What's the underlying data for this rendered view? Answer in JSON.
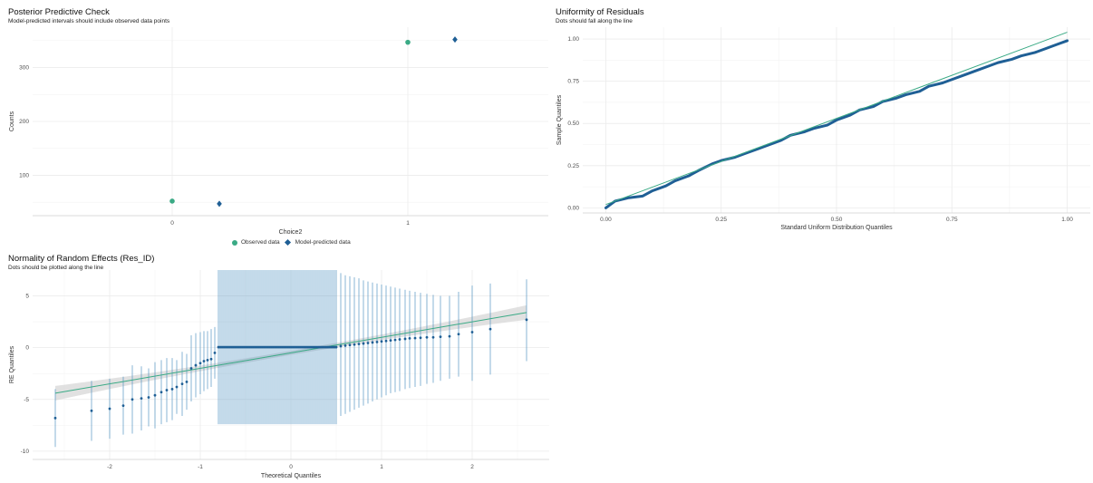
{
  "colors": {
    "observed": "#3aaa85",
    "predicted": "#1f5f95",
    "line": "#3aaa85",
    "points": "#1f5f95",
    "band": "#d9d9d9",
    "grid": "#ebebeb",
    "errorbar": "#4f90c0"
  },
  "chart_data": [
    {
      "type": "scatter",
      "title": "Posterior Predictive Check",
      "subtitle": "Model-predicted intervals should include observed data points",
      "xlabel": "Choice2",
      "ylabel": "Counts",
      "x_ticks": [
        "0",
        "1"
      ],
      "y_ticks": [
        100,
        200,
        300
      ],
      "ylim": [
        25,
        375
      ],
      "legend": {
        "position": "bottom",
        "observed_label": "Observed data",
        "predicted_label": "Model-predicted data"
      },
      "observed": [
        {
          "x": "0",
          "y": 52
        },
        {
          "x": "1",
          "y": 347
        }
      ],
      "predicted": [
        {
          "x": "0",
          "y": 47,
          "low": 43,
          "high": 51
        },
        {
          "x": "1",
          "y": 352,
          "low": 348,
          "high": 356
        }
      ]
    },
    {
      "type": "scatter",
      "title": "Uniformity of Residuals",
      "subtitle": "Dots should fall along the line",
      "xlabel": "Standard Uniform Distribution Quantiles",
      "ylabel": "Sample Quantiles",
      "x_ticks": [
        "0.00",
        "0.25",
        "0.50",
        "0.75",
        "1.00"
      ],
      "y_ticks": [
        "0.00",
        "0.25",
        "0.50",
        "0.75",
        "1.00"
      ],
      "xlim": [
        -0.05,
        1.05
      ],
      "ylim": [
        -0.03,
        1.07
      ],
      "reference_line": {
        "x": [
          0.0,
          1.0
        ],
        "y": [
          0.02,
          1.04
        ]
      },
      "points": {
        "x": [
          0.0,
          0.02,
          0.05,
          0.08,
          0.1,
          0.13,
          0.15,
          0.18,
          0.2,
          0.23,
          0.25,
          0.28,
          0.3,
          0.33,
          0.35,
          0.38,
          0.4,
          0.43,
          0.45,
          0.48,
          0.5,
          0.53,
          0.55,
          0.58,
          0.6,
          0.63,
          0.65,
          0.68,
          0.7,
          0.73,
          0.75,
          0.78,
          0.8,
          0.83,
          0.85,
          0.88,
          0.9,
          0.93,
          0.95,
          0.98,
          1.0
        ],
        "y": [
          0.0,
          0.04,
          0.06,
          0.07,
          0.1,
          0.13,
          0.16,
          0.19,
          0.22,
          0.26,
          0.28,
          0.3,
          0.32,
          0.35,
          0.37,
          0.4,
          0.43,
          0.45,
          0.47,
          0.49,
          0.52,
          0.55,
          0.58,
          0.6,
          0.63,
          0.65,
          0.67,
          0.69,
          0.72,
          0.74,
          0.76,
          0.79,
          0.81,
          0.84,
          0.86,
          0.88,
          0.9,
          0.92,
          0.94,
          0.97,
          0.99
        ]
      }
    },
    {
      "type": "scatter",
      "title": "Normality of Random Effects (Res_ID)",
      "subtitle": "Dots should be plotted along the line",
      "xlabel": "Theoretical Quantiles",
      "ylabel": "RE Quantiles",
      "x_ticks": [
        -2,
        -1,
        0,
        1,
        2
      ],
      "y_ticks": [
        -10,
        -5,
        0,
        5
      ],
      "xlim": [
        -2.85,
        2.85
      ],
      "ylim": [
        -10.8,
        7.5
      ],
      "reference_line": {
        "x": [
          -2.6,
          2.6
        ],
        "y": [
          -4.4,
          3.4
        ],
        "band_halfwidth_ends": 0.7,
        "band_halfwidth_mid": 0.2
      },
      "points": [
        {
          "x": -2.6,
          "y": -6.8,
          "low": -9.6,
          "high": -4.0
        },
        {
          "x": -2.2,
          "y": -6.1,
          "low": -9.0,
          "high": -3.2
        },
        {
          "x": -2.0,
          "y": -5.9,
          "low": -8.8,
          "high": -3.0
        },
        {
          "x": -1.85,
          "y": -5.6,
          "low": -8.4,
          "high": -2.8
        },
        {
          "x": -1.75,
          "y": -5.0,
          "low": -8.3,
          "high": -1.7
        },
        {
          "x": -1.65,
          "y": -4.9,
          "low": -8.0,
          "high": -1.8
        },
        {
          "x": -1.57,
          "y": -4.8,
          "low": -7.6,
          "high": -2.0
        },
        {
          "x": -1.5,
          "y": -4.6,
          "low": -7.8,
          "high": -1.4
        },
        {
          "x": -1.43,
          "y": -4.3,
          "low": -7.4,
          "high": -1.2
        },
        {
          "x": -1.37,
          "y": -4.1,
          "low": -7.2,
          "high": -1.0
        },
        {
          "x": -1.31,
          "y": -4.0,
          "low": -7.0,
          "high": -1.0
        },
        {
          "x": -1.26,
          "y": -3.8,
          "low": -6.4,
          "high": -1.2
        },
        {
          "x": -1.2,
          "y": -3.5,
          "low": -6.6,
          "high": -0.4
        },
        {
          "x": -1.15,
          "y": -3.3,
          "low": -6.0,
          "high": -0.6
        },
        {
          "x": -1.1,
          "y": -2.0,
          "low": -5.2,
          "high": 1.2
        },
        {
          "x": -1.05,
          "y": -1.7,
          "low": -4.8,
          "high": 1.4
        },
        {
          "x": -1.0,
          "y": -1.5,
          "low": -4.5,
          "high": 1.5
        },
        {
          "x": -0.96,
          "y": -1.3,
          "low": -4.2,
          "high": 1.6
        },
        {
          "x": -0.92,
          "y": -1.2,
          "low": -4.0,
          "high": 1.6
        },
        {
          "x": -0.88,
          "y": -1.1,
          "low": -3.8,
          "high": 1.8
        },
        {
          "x": -0.84,
          "y": -0.5,
          "low": -3.0,
          "high": 2.0
        }
      ],
      "plateau": {
        "x_start": -0.8,
        "x_end": 0.5,
        "count": 66,
        "y": 0.05,
        "low": -7.4,
        "high": 7.5
      },
      "upper_points": [
        {
          "x": 0.55,
          "y": 0.15,
          "low": -6.6,
          "high": 7.2
        },
        {
          "x": 0.6,
          "y": 0.2,
          "low": -6.4,
          "high": 7.0
        },
        {
          "x": 0.65,
          "y": 0.25,
          "low": -6.2,
          "high": 6.9
        },
        {
          "x": 0.7,
          "y": 0.3,
          "low": -6.0,
          "high": 6.8
        },
        {
          "x": 0.75,
          "y": 0.35,
          "low": -5.8,
          "high": 6.7
        },
        {
          "x": 0.8,
          "y": 0.4,
          "low": -5.6,
          "high": 6.5
        },
        {
          "x": 0.85,
          "y": 0.45,
          "low": -5.4,
          "high": 6.4
        },
        {
          "x": 0.9,
          "y": 0.5,
          "low": -5.2,
          "high": 6.3
        },
        {
          "x": 0.95,
          "y": 0.55,
          "low": -5.0,
          "high": 6.2
        },
        {
          "x": 1.0,
          "y": 0.6,
          "low": -4.8,
          "high": 6.1
        },
        {
          "x": 1.05,
          "y": 0.65,
          "low": -4.6,
          "high": 6.0
        },
        {
          "x": 1.1,
          "y": 0.7,
          "low": -4.4,
          "high": 5.9
        },
        {
          "x": 1.15,
          "y": 0.75,
          "low": -4.3,
          "high": 5.8
        },
        {
          "x": 1.2,
          "y": 0.8,
          "low": -4.2,
          "high": 5.7
        },
        {
          "x": 1.26,
          "y": 0.85,
          "low": -4.0,
          "high": 5.6
        },
        {
          "x": 1.31,
          "y": 0.9,
          "low": -3.9,
          "high": 5.5
        },
        {
          "x": 1.37,
          "y": 0.92,
          "low": -3.8,
          "high": 5.4
        },
        {
          "x": 1.43,
          "y": 0.95,
          "low": -3.7,
          "high": 5.3
        },
        {
          "x": 1.5,
          "y": 1.0,
          "low": -3.5,
          "high": 5.2
        },
        {
          "x": 1.57,
          "y": 1.0,
          "low": -3.4,
          "high": 5.1
        },
        {
          "x": 1.65,
          "y": 1.05,
          "low": -3.2,
          "high": 5.0
        },
        {
          "x": 1.75,
          "y": 1.1,
          "low": -3.0,
          "high": 5.0
        },
        {
          "x": 1.85,
          "y": 1.3,
          "low": -2.8,
          "high": 5.4
        },
        {
          "x": 2.0,
          "y": 1.5,
          "low": -3.2,
          "high": 6.0
        },
        {
          "x": 2.2,
          "y": 1.8,
          "low": -2.6,
          "high": 6.2
        },
        {
          "x": 2.6,
          "y": 2.7,
          "low": -1.3,
          "high": 6.6
        }
      ]
    }
  ]
}
